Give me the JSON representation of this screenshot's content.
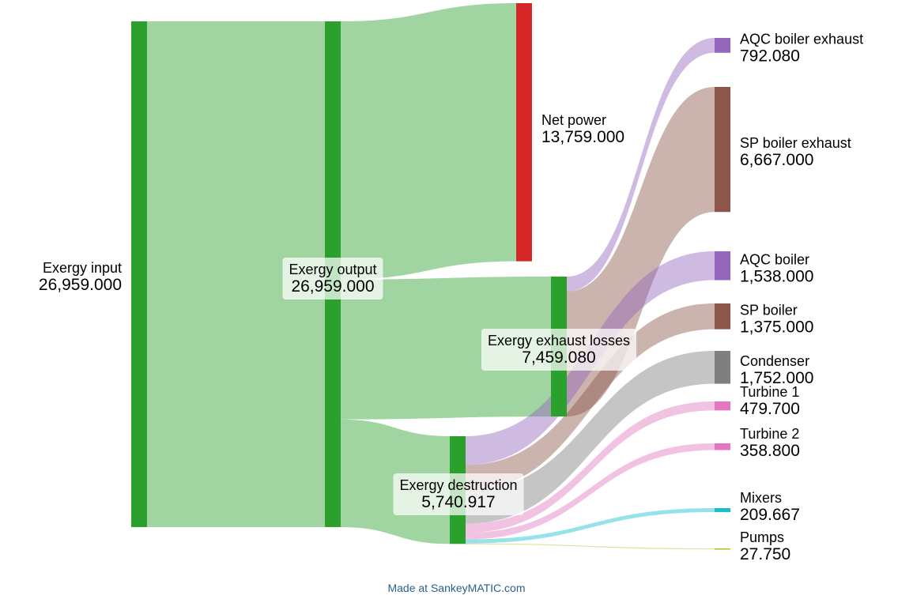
{
  "chart_data": {
    "type": "sankey",
    "title": "",
    "nodes": [
      {
        "id": "exergy_input",
        "name": "Exergy input",
        "value_label": "26,959.000",
        "value": 26959.0,
        "color": "#2ca02c"
      },
      {
        "id": "exergy_output",
        "name": "Exergy output",
        "value_label": "26,959.000",
        "value": 26959.0,
        "color": "#2ca02c"
      },
      {
        "id": "net_power",
        "name": "Net power",
        "value_label": "13,759.000",
        "value": 13759.0,
        "color": "#d62728"
      },
      {
        "id": "exhaust_losses",
        "name": "Exergy exhaust losses",
        "value_label": "7,459.080",
        "value": 7459.08,
        "color": "#2ca02c"
      },
      {
        "id": "destruction",
        "name": "Exergy destruction",
        "value_label": "5,740.917",
        "value": 5740.917,
        "color": "#2ca02c"
      },
      {
        "id": "aqc_exhaust",
        "name": "AQC boiler exhaust",
        "value_label": "792.080",
        "value": 792.08,
        "color": "#9467bd"
      },
      {
        "id": "sp_exhaust",
        "name": "SP boiler exhaust",
        "value_label": "6,667.000",
        "value": 6667.0,
        "color": "#8c564b"
      },
      {
        "id": "aqc_boiler",
        "name": "AQC boiler",
        "value_label": "1,538.000",
        "value": 1538.0,
        "color": "#9467bd"
      },
      {
        "id": "sp_boiler",
        "name": "SP boiler",
        "value_label": "1,375.000",
        "value": 1375.0,
        "color": "#8c564b"
      },
      {
        "id": "condenser",
        "name": "Condenser",
        "value_label": "1,752.000",
        "value": 1752.0,
        "color": "#7f7f7f"
      },
      {
        "id": "turbine1",
        "name": "Turbine 1",
        "value_label": "479.700",
        "value": 479.7,
        "color": "#e377c2"
      },
      {
        "id": "turbine2",
        "name": "Turbine 2",
        "value_label": "358.800",
        "value": 358.8,
        "color": "#e377c2"
      },
      {
        "id": "mixers",
        "name": "Mixers",
        "value_label": "209.667",
        "value": 209.667,
        "color": "#17becf"
      },
      {
        "id": "pumps",
        "name": "Pumps",
        "value_label": "27.750",
        "value": 27.75,
        "color": "#bcbd22"
      }
    ],
    "flows": [
      {
        "from": "exergy_input",
        "to": "exergy_output",
        "value": 26959.0
      },
      {
        "from": "exergy_output",
        "to": "net_power",
        "value": 13759.0
      },
      {
        "from": "exergy_output",
        "to": "exhaust_losses",
        "value": 7459.08
      },
      {
        "from": "exergy_output",
        "to": "destruction",
        "value": 5740.917
      },
      {
        "from": "exhaust_losses",
        "to": "aqc_exhaust",
        "value": 792.08
      },
      {
        "from": "exhaust_losses",
        "to": "sp_exhaust",
        "value": 6667.0
      },
      {
        "from": "destruction",
        "to": "aqc_boiler",
        "value": 1538.0
      },
      {
        "from": "destruction",
        "to": "sp_boiler",
        "value": 1375.0
      },
      {
        "from": "destruction",
        "to": "condenser",
        "value": 1752.0
      },
      {
        "from": "destruction",
        "to": "turbine1",
        "value": 479.7
      },
      {
        "from": "destruction",
        "to": "turbine2",
        "value": 358.8
      },
      {
        "from": "destruction",
        "to": "mixers",
        "value": 209.667
      },
      {
        "from": "destruction",
        "to": "pumps",
        "value": 27.75
      }
    ]
  },
  "credit": "Made at SankeyMATIC.com"
}
